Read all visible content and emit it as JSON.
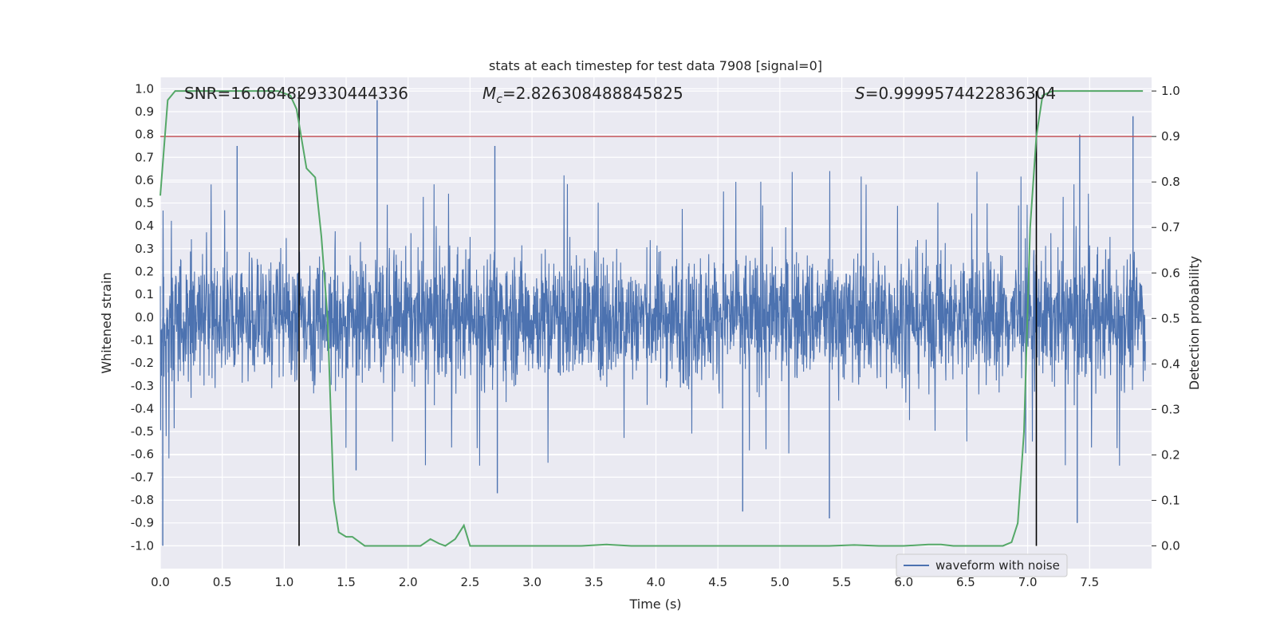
{
  "chart_data": {
    "type": "line",
    "title": "stats at each timestep for test data 7908 [signal=0]",
    "xlabel": "Time (s)",
    "ylabel": "Whitened strain",
    "y2label": "Detection probability",
    "xlim": [
      0.0,
      8.0
    ],
    "ylim": [
      -1.1,
      1.05
    ],
    "y2lim": [
      -0.05,
      1.03
    ],
    "x_ticks": [
      "0.0",
      "0.5",
      "1.0",
      "1.5",
      "2.0",
      "2.5",
      "3.0",
      "3.5",
      "4.0",
      "4.5",
      "5.0",
      "5.5",
      "6.0",
      "6.5",
      "7.0",
      "7.5"
    ],
    "y_ticks": [
      "1.0",
      "0.9",
      "0.8",
      "0.7",
      "0.6",
      "0.5",
      "0.4",
      "0.3",
      "0.2",
      "0.1",
      "0.0",
      "-0.1",
      "-0.2",
      "-0.3",
      "-0.4",
      "-0.5",
      "-0.6",
      "-0.7",
      "-0.8",
      "-0.9",
      "-1.0"
    ],
    "y2_ticks": [
      "1.0",
      "0.9",
      "0.8",
      "0.7",
      "0.6",
      "0.5",
      "0.4",
      "0.3",
      "0.2",
      "0.1",
      "0.0"
    ],
    "grid": true,
    "legend": {
      "placement": "lower-center-right",
      "entries": [
        "waveform with noise"
      ]
    },
    "annotations": {
      "snr": "SNR=16.084829330444336",
      "mc_symbol": "M",
      "mc_sub": "c",
      "mc_value": "=2.826308488845825",
      "s_symbol": "S",
      "s_value": "=0.9999574422836304"
    },
    "threshold": {
      "axis": "y2",
      "value": 0.9,
      "color": "#c44e52"
    },
    "vertical_markers": {
      "x": [
        1.12,
        7.07
      ],
      "color": "#000000"
    },
    "series": [
      {
        "name": "waveform with noise",
        "axis": "y",
        "color": "#4c72b0",
        "description_free": true,
        "spikes": [
          {
            "x": 0.02,
            "y": -1.0
          },
          {
            "x": 0.62,
            "y": 0.75
          },
          {
            "x": 1.75,
            "y": 0.95
          },
          {
            "x": 2.7,
            "y": 0.75
          },
          {
            "x": 2.72,
            "y": -0.77
          },
          {
            "x": 1.58,
            "y": -0.67
          },
          {
            "x": 4.7,
            "y": -0.85
          },
          {
            "x": 5.4,
            "y": -0.88
          },
          {
            "x": 7.4,
            "y": -0.9
          },
          {
            "x": 7.85,
            "y": 0.88
          },
          {
            "x": 7.42,
            "y": 0.8
          }
        ]
      },
      {
        "name": "",
        "axis": "y2",
        "color": "#55a868",
        "x": [
          0.0,
          0.06,
          0.12,
          0.2,
          0.4,
          0.6,
          0.8,
          0.95,
          1.05,
          1.1,
          1.18,
          1.25,
          1.3,
          1.35,
          1.4,
          1.44,
          1.5,
          1.55,
          1.6,
          1.65,
          1.7,
          1.8,
          1.9,
          2.0,
          2.1,
          2.18,
          2.25,
          2.3,
          2.38,
          2.45,
          2.5,
          2.6,
          2.8,
          3.0,
          3.2,
          3.4,
          3.6,
          3.8,
          4.0,
          4.2,
          4.4,
          4.6,
          4.8,
          5.0,
          5.2,
          5.4,
          5.6,
          5.8,
          6.0,
          6.2,
          6.3,
          6.4,
          6.6,
          6.8,
          6.87,
          6.92,
          6.97,
          7.02,
          7.07,
          7.12,
          7.2,
          7.3,
          7.5,
          7.7,
          7.93
        ],
        "values": [
          0.77,
          0.98,
          1.0,
          1.0,
          1.0,
          1.0,
          1.0,
          1.0,
          0.99,
          0.96,
          0.83,
          0.81,
          0.68,
          0.5,
          0.1,
          0.03,
          0.02,
          0.02,
          0.01,
          0.0,
          0.0,
          0.0,
          0.0,
          0.0,
          0.0,
          0.015,
          0.005,
          0.0,
          0.015,
          0.045,
          0.0,
          0.0,
          0.0,
          0.0,
          0.0,
          0.0,
          0.003,
          0.0,
          0.0,
          0.0,
          0.0,
          0.0,
          0.0,
          0.0,
          0.0,
          0.0,
          0.002,
          0.0,
          0.0,
          0.003,
          0.003,
          0.0,
          0.0,
          0.0,
          0.008,
          0.05,
          0.25,
          0.7,
          0.9,
          0.99,
          1.0,
          1.0,
          1.0,
          1.0,
          1.0
        ]
      }
    ]
  }
}
